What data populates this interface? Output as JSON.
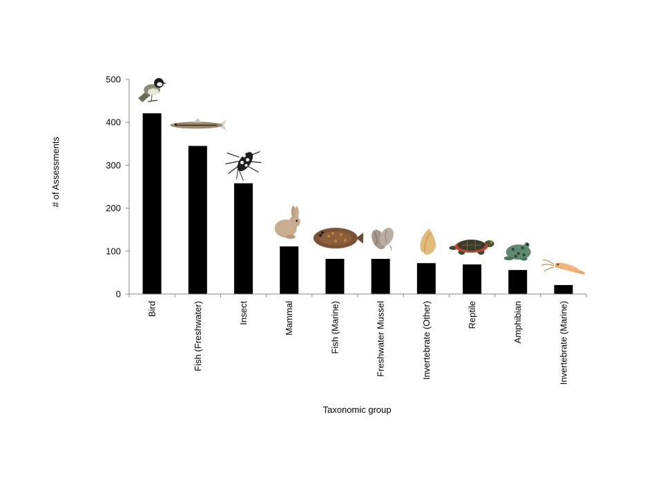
{
  "chart_data": {
    "type": "bar",
    "title": "",
    "xlabel": "Taxonomic group",
    "ylabel": "# of Assessments",
    "ylim": [
      0,
      500
    ],
    "yticks": [
      0,
      100,
      200,
      300,
      400,
      500
    ],
    "grid": false,
    "legend": "none",
    "bar_color": "#000000",
    "categories": [
      "Bird",
      "Fish (Freshwater)",
      "Insect",
      "Mammal",
      "Fish (Marine)",
      "Freshwater Mussel",
      "Invertebrate (Other)",
      "Reptile",
      "Amphibian",
      "Invertebrate (Marine)"
    ],
    "values": [
      421,
      345,
      258,
      111,
      82,
      82,
      72,
      69,
      56,
      21
    ],
    "icons": [
      "bird-chickadee-icon",
      "freshwater-fish-icon",
      "beetle-icon",
      "rabbit-icon",
      "flounder-icon",
      "mussel-icon",
      "snail-shell-icon",
      "turtle-icon",
      "frog-icon",
      "squid-icon"
    ]
  }
}
